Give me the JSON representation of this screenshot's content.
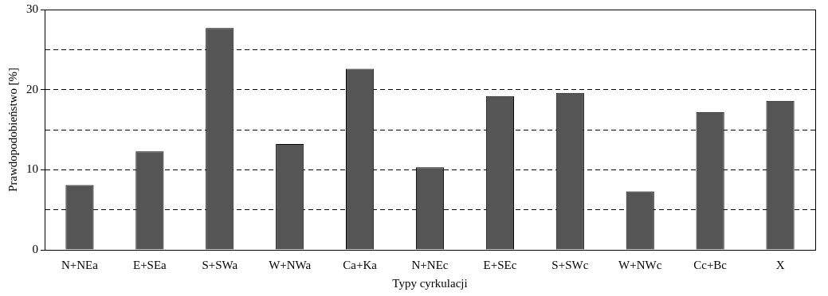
{
  "chart_data": {
    "type": "bar",
    "x_label": "Typy cyrkulacji",
    "y_label": "Prawdopodobieństwo [%]",
    "categories": [
      "N+NEa",
      "E+SEa",
      "S+SWa",
      "W+NWa",
      "Ca+Ka",
      "N+NEc",
      "E+SEc",
      "S+SWc",
      "W+NWc",
      "Cc+Bc",
      "X"
    ],
    "values": [
      8.1,
      12.3,
      27.7,
      13.2,
      22.6,
      10.3,
      19.2,
      19.6,
      7.3,
      17.2,
      18.6
    ],
    "color": "#555555",
    "ylim": [
      0,
      30
    ],
    "yticks": [
      0,
      10,
      20,
      30
    ],
    "grid": true
  }
}
